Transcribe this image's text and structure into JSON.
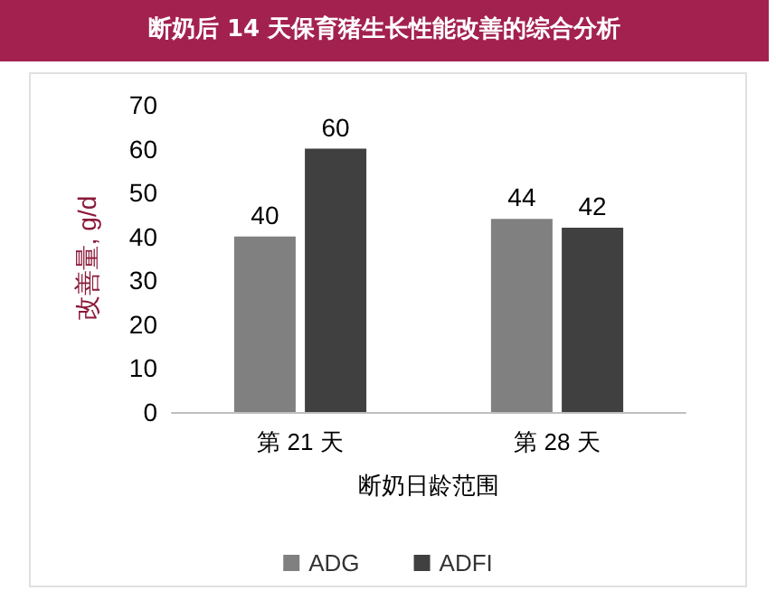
{
  "chart_data": {
    "type": "bar",
    "title": "断奶后 14 天保育猪生长性能改善的综合分析",
    "xlabel": "断奶日龄范围",
    "ylabel": "改善量, g/d",
    "categories": [
      "第 21 天",
      "第 28 天"
    ],
    "series": [
      {
        "name": "ADG",
        "color": "#808080",
        "values": [
          40,
          44
        ]
      },
      {
        "name": "ADFI",
        "color": "#404040",
        "values": [
          60,
          42
        ]
      }
    ],
    "ylim": [
      0,
      70
    ],
    "yticks": [
      0,
      10,
      20,
      30,
      40,
      50,
      60,
      70
    ],
    "grid": false,
    "legend": "bottom",
    "data_labels": true
  }
}
